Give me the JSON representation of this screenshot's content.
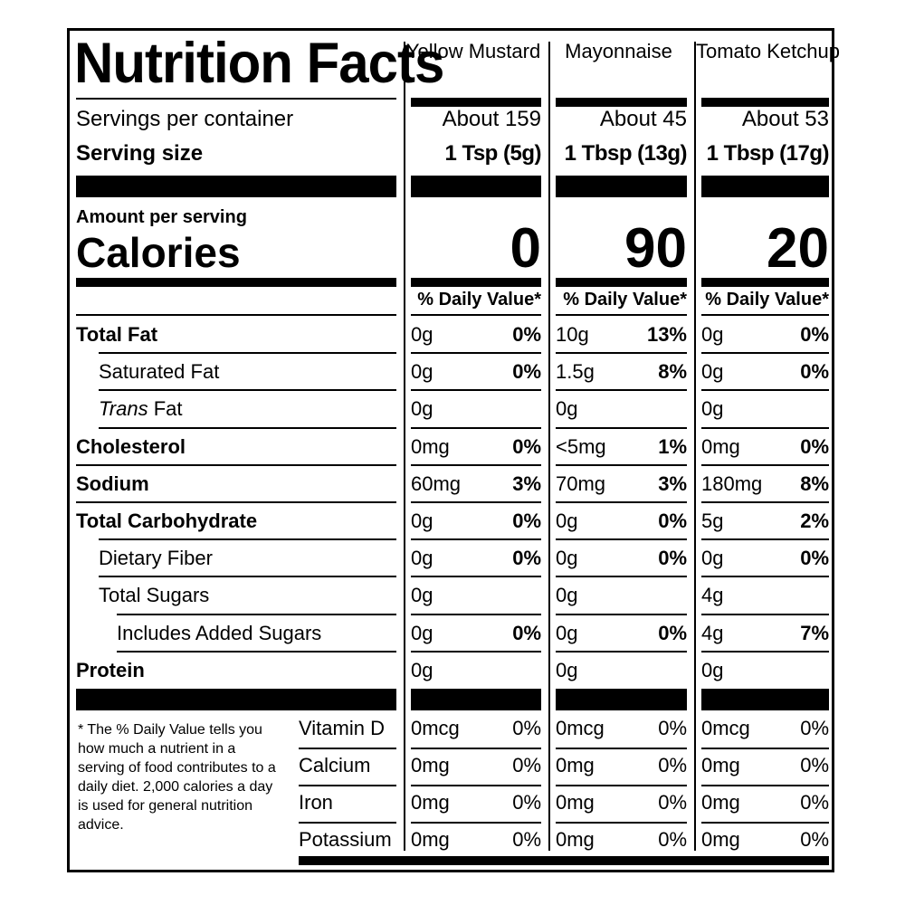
{
  "label": {
    "title": "Nutrition Facts",
    "servings_label": "Servings per container",
    "serving_size_label": "Serving size",
    "amount_per_serving": "Amount per serving",
    "calories_label": "Calories",
    "daily_value_header": "% Daily Value*",
    "footnote": "* The % Daily Value tells you how much a nutrient in a serving of food contributes to a daily diet. 2,000 calories a day is used for general nutrition advice."
  },
  "nutrients": [
    {
      "key": "total_fat",
      "label": "Total Fat",
      "bold": true,
      "indent": 0
    },
    {
      "key": "sat_fat",
      "label": "Saturated Fat",
      "bold": false,
      "indent": 1
    },
    {
      "key": "trans_fat",
      "label_italic": "Trans",
      "label_rest": " Fat",
      "bold": false,
      "indent": 1
    },
    {
      "key": "cholesterol",
      "label": "Cholesterol",
      "bold": true,
      "indent": 0
    },
    {
      "key": "sodium",
      "label": "Sodium",
      "bold": true,
      "indent": 0
    },
    {
      "key": "total_carb",
      "label": "Total Carbohydrate",
      "bold": true,
      "indent": 0
    },
    {
      "key": "fiber",
      "label": "Dietary Fiber",
      "bold": false,
      "indent": 1
    },
    {
      "key": "sugars",
      "label": "Total Sugars",
      "bold": false,
      "indent": 1
    },
    {
      "key": "added_sugars",
      "label": "Includes Added Sugars",
      "bold": false,
      "indent": 2
    },
    {
      "key": "protein",
      "label": "Protein",
      "bold": true,
      "indent": 0
    }
  ],
  "vitamins": [
    "Vitamin D",
    "Calcium",
    "Iron",
    "Potassium"
  ],
  "products": [
    {
      "name": "Yellow Mustard",
      "servings": "About 159",
      "serving_size": "1 Tsp (5g)",
      "calories": "0",
      "values": [
        [
          "0g",
          "0%"
        ],
        [
          "0g",
          "0%"
        ],
        [
          "0g",
          ""
        ],
        [
          "0mg",
          "0%"
        ],
        [
          "60mg",
          "3%"
        ],
        [
          "0g",
          "0%"
        ],
        [
          "0g",
          "0%"
        ],
        [
          "0g",
          ""
        ],
        [
          "0g",
          "0%"
        ],
        [
          "0g",
          ""
        ]
      ],
      "vitamins": [
        [
          "0mcg",
          "0%"
        ],
        [
          "0mg",
          "0%"
        ],
        [
          "0mg",
          "0%"
        ],
        [
          "0mg",
          "0%"
        ]
      ]
    },
    {
      "name": "Mayonnaise",
      "servings": "About 45",
      "serving_size": "1 Tbsp (13g)",
      "calories": "90",
      "values": [
        [
          "10g",
          "13%"
        ],
        [
          "1.5g",
          "8%"
        ],
        [
          "0g",
          ""
        ],
        [
          "<5mg",
          "1%"
        ],
        [
          "70mg",
          "3%"
        ],
        [
          "0g",
          "0%"
        ],
        [
          "0g",
          "0%"
        ],
        [
          "0g",
          ""
        ],
        [
          "0g",
          "0%"
        ],
        [
          "0g",
          ""
        ]
      ],
      "vitamins": [
        [
          "0mcg",
          "0%"
        ],
        [
          "0mg",
          "0%"
        ],
        [
          "0mg",
          "0%"
        ],
        [
          "0mg",
          "0%"
        ]
      ]
    },
    {
      "name": "Tomato Ketchup",
      "servings": "About 53",
      "serving_size": "1 Tbsp (17g)",
      "calories": "20",
      "values": [
        [
          "0g",
          "0%"
        ],
        [
          "0g",
          "0%"
        ],
        [
          "0g",
          ""
        ],
        [
          "0mg",
          "0%"
        ],
        [
          "180mg",
          "8%"
        ],
        [
          "5g",
          "2%"
        ],
        [
          "0g",
          "0%"
        ],
        [
          "4g",
          ""
        ],
        [
          "4g",
          "7%"
        ],
        [
          "0g",
          ""
        ]
      ],
      "vitamins": [
        [
          "0mcg",
          "0%"
        ],
        [
          "0mg",
          "0%"
        ],
        [
          "0mg",
          "0%"
        ],
        [
          "0mg",
          "0%"
        ]
      ]
    }
  ]
}
